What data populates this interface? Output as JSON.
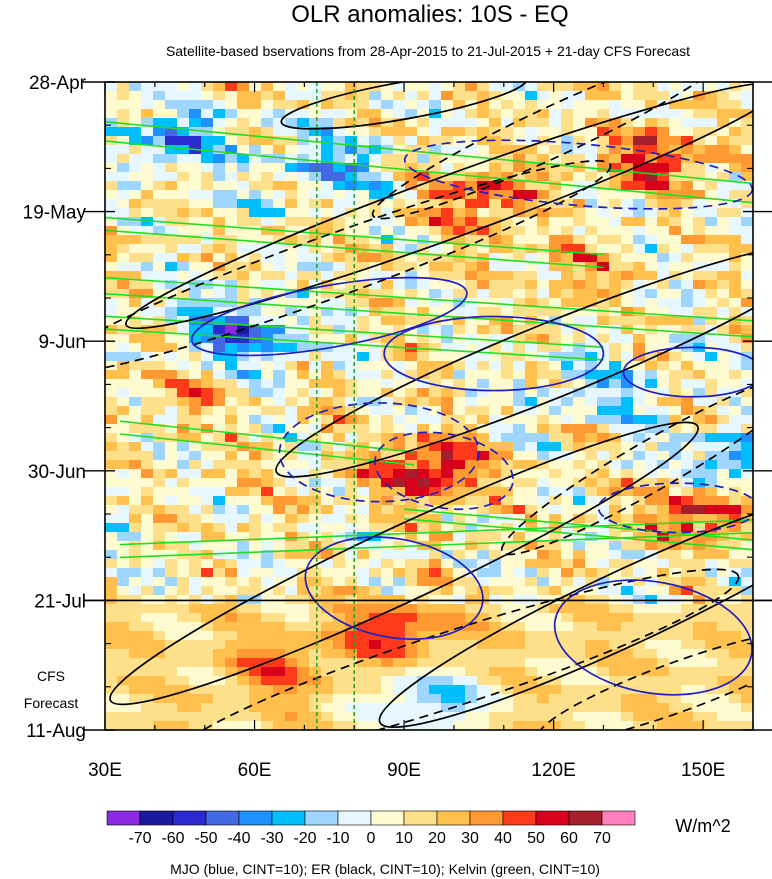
{
  "chart_data": {
    "type": "heatmap",
    "title": "OLR anomalies: 10S - EQ",
    "subtitle": "Satellite-based bservations from 28-Apr-2015 to 21-Jul-2015 + 21-day CFS Forecast",
    "x_axis": {
      "range": [
        30,
        160
      ],
      "ticks": [
        {
          "value": 30,
          "label": "30E"
        },
        {
          "value": 60,
          "label": "60E"
        },
        {
          "value": 90,
          "label": "90E"
        },
        {
          "value": 120,
          "label": "120E"
        },
        {
          "value": 150,
          "label": "150E"
        }
      ]
    },
    "y_axis": {
      "range_days": [
        0,
        105
      ],
      "direction": "time increases downward",
      "ticks": [
        {
          "day": 0,
          "label": "28-Apr"
        },
        {
          "day": 21,
          "label": "19-May"
        },
        {
          "day": 42,
          "label": "9-Jun"
        },
        {
          "day": 63,
          "label": "30-Jun"
        },
        {
          "day": 84,
          "label": "21-Jul"
        },
        {
          "day": 105,
          "label": "11-Aug"
        }
      ]
    },
    "observation_end_day": 84,
    "forecast_label_lines": [
      "CFS",
      "Forecast"
    ],
    "reference_longitudes": [
      72.5,
      80
    ],
    "colorbar": {
      "units": "W/m^2",
      "levels": [
        "-70",
        "-60",
        "-50",
        "-40",
        "-30",
        "-20",
        "-10",
        "0",
        "10",
        "20",
        "30",
        "40",
        "50",
        "60",
        "70"
      ],
      "colors": [
        "#8a2be2",
        "#1a1a9e",
        "#2a2ad0",
        "#4169e1",
        "#1e90ff",
        "#00bfff",
        "#9fd6ff",
        "#e6f7ff",
        "#fffbd0",
        "#ffe08a",
        "#ffc04d",
        "#ff9a33",
        "#ff3a1a",
        "#d9001b",
        "#a51f2c",
        "#ff7fbf"
      ]
    },
    "field_features": [
      {
        "lon": 95,
        "day": 63,
        "value": 55
      },
      {
        "lon": 88,
        "day": 89,
        "value": 45
      },
      {
        "lon": 150,
        "day": 70,
        "value": 50
      },
      {
        "lon": 140,
        "day": 12,
        "value": 40
      },
      {
        "lon": 105,
        "day": 19,
        "value": 40
      },
      {
        "lon": 58,
        "day": 41,
        "value": -55
      },
      {
        "lon": 95,
        "day": 100,
        "value": -50
      },
      {
        "lon": 75,
        "day": 13,
        "value": -40
      },
      {
        "lon": 45,
        "day": 9,
        "value": -40
      },
      {
        "lon": 130,
        "day": 50,
        "value": -30
      },
      {
        "lon": 158,
        "day": 62,
        "value": -45
      },
      {
        "lon": 65,
        "day": 95,
        "value": 30
      },
      {
        "lon": 45,
        "day": 50,
        "value": 15
      },
      {
        "lon": 125,
        "day": 30,
        "value": 20
      }
    ],
    "contours": {
      "kelvin": [
        {
          "p1": [
            30,
            8
          ],
          "p2": [
            160,
            18
          ],
          "w": 6
        },
        {
          "p1": [
            30,
            23
          ],
          "p2": [
            130,
            29
          ],
          "w": 4
        },
        {
          "p1": [
            30,
            33
          ],
          "p2": [
            160,
            40
          ],
          "w": 5
        },
        {
          "p1": [
            30,
            39
          ],
          "p2": [
            130,
            44
          ],
          "w": 4
        },
        {
          "p1": [
            33,
            56
          ],
          "p2": [
            92,
            61
          ],
          "w": 4
        },
        {
          "p1": [
            33,
            76
          ],
          "p2": [
            160,
            72
          ],
          "w": 4
        },
        {
          "p1": [
            90,
            70
          ],
          "p2": [
            160,
            75
          ],
          "w": 3
        }
      ],
      "er": [
        {
          "c": [
            100,
            20
          ],
          "rx": 70,
          "ry": 5,
          "rot": -20,
          "dash": false
        },
        {
          "c": [
            120,
            45
          ],
          "rx": 60,
          "ry": 6,
          "rot": -22,
          "dash": false
        },
        {
          "c": [
            90,
            78
          ],
          "rx": 65,
          "ry": 6,
          "rot": -25,
          "dash": false
        },
        {
          "c": [
            135,
            85
          ],
          "rx": 55,
          "ry": 6,
          "rot": -25,
          "dash": false
        },
        {
          "c": [
            75,
            30
          ],
          "rx": 60,
          "ry": 5,
          "rot": -20,
          "dash": true
        },
        {
          "c": [
            120,
            8
          ],
          "rx": 40,
          "ry": 4,
          "rot": -25,
          "dash": true
        },
        {
          "c": [
            100,
            95
          ],
          "rx": 60,
          "ry": 6,
          "rot": -18,
          "dash": true
        },
        {
          "c": [
            140,
            62
          ],
          "rx": 35,
          "ry": 4,
          "rot": -30,
          "dash": true
        },
        {
          "c": [
            90,
            3
          ],
          "rx": 25,
          "ry": 3,
          "rot": -10,
          "dash": false
        },
        {
          "c": [
            145,
            98
          ],
          "rx": 30,
          "ry": 4,
          "rot": -20,
          "dash": true
        }
      ],
      "mjo": [
        {
          "c": [
            75,
            38
          ],
          "rx": 28,
          "ry": 5,
          "rot": -10,
          "dash": false
        },
        {
          "c": [
            108,
            44
          ],
          "rx": 22,
          "ry": 6,
          "rot": 0,
          "dash": false
        },
        {
          "c": [
            148,
            47
          ],
          "rx": 14,
          "ry": 4,
          "rot": 0,
          "dash": false
        },
        {
          "c": [
            88,
            82
          ],
          "rx": 18,
          "ry": 8,
          "rot": 10,
          "dash": false
        },
        {
          "c": [
            140,
            90
          ],
          "rx": 20,
          "ry": 9,
          "rot": 10,
          "dash": false
        },
        {
          "c": [
            125,
            15
          ],
          "rx": 35,
          "ry": 5,
          "rot": 5,
          "dash": true
        },
        {
          "c": [
            98,
            63
          ],
          "rx": 14,
          "ry": 6,
          "rot": 10,
          "dash": true
        },
        {
          "c": [
            145,
            69
          ],
          "rx": 16,
          "ry": 4,
          "rot": 0,
          "dash": true
        },
        {
          "c": [
            85,
            60
          ],
          "rx": 20,
          "ry": 8,
          "rot": 0,
          "dash": true
        }
      ]
    },
    "footer_caption": "MJO (blue, CINT=10); ER (black, CINT=10); Kelvin (green, CINT=10)",
    "line_colors": {
      "mjo": "#2020c0",
      "er": "#000000",
      "kelvin": "#22dd22",
      "reference": "#1a9a1a"
    }
  }
}
